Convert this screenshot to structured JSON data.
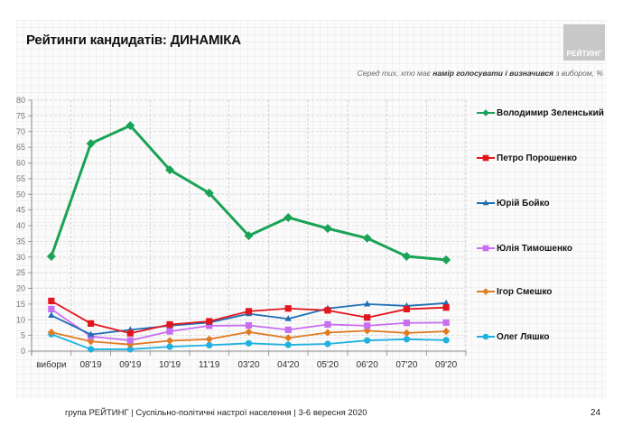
{
  "header": {
    "title": "Рейтинги кандидатів: ДИНАМІКА",
    "logo_text": "РЕЙТИНГ",
    "subtitle_pre": "Серед тих, хто має ",
    "subtitle_bold": "намір голосувати і визначився",
    "subtitle_post": " з вибором, %"
  },
  "chart_data": {
    "type": "line",
    "title": "Рейтинги кандидатів: ДИНАМІКА",
    "xlabel": "",
    "ylabel": "",
    "ylim": [
      0,
      80
    ],
    "yticks": [
      0,
      5,
      10,
      15,
      20,
      25,
      30,
      35,
      40,
      45,
      50,
      55,
      60,
      65,
      70,
      75,
      80
    ],
    "grid": true,
    "legend_position": "right",
    "categories": [
      "вибори",
      "08'19",
      "09'19",
      "10'19",
      "11'19",
      "03'20",
      "04'20",
      "05'20",
      "06'20",
      "07'20",
      "09'20"
    ],
    "series": [
      {
        "name": "Володимир Зеленський",
        "color": "#1aa356",
        "marker": "diamond",
        "values": [
          30.2,
          66.2,
          71.9,
          57.8,
          50.4,
          36.8,
          42.6,
          39.1,
          36.0,
          30.2,
          29.1
        ]
      },
      {
        "name": "Петро Порошенко",
        "color": "#e3161d",
        "marker": "square",
        "values": [
          16.0,
          8.8,
          5.7,
          8.5,
          9.5,
          12.7,
          13.6,
          13.0,
          10.7,
          13.4,
          13.9
        ]
      },
      {
        "name": "Юрій Бойко",
        "color": "#1f6fb5",
        "marker": "triangle",
        "values": [
          11.4,
          5.3,
          6.8,
          8.1,
          9.1,
          11.9,
          10.3,
          13.6,
          15.0,
          14.4,
          15.3
        ]
      },
      {
        "name": "Юлія Тимошенко",
        "color": "#c86ef0",
        "marker": "square",
        "values": [
          13.4,
          4.7,
          3.4,
          6.3,
          8.1,
          8.2,
          6.8,
          8.5,
          8.1,
          9.0,
          9.1
        ]
      },
      {
        "name": "Ігор Смешко",
        "color": "#e07b22",
        "marker": "diamond",
        "values": [
          6.0,
          3.1,
          2.1,
          3.3,
          3.8,
          6.1,
          4.2,
          5.9,
          6.5,
          5.8,
          6.3
        ]
      },
      {
        "name": "Олег Ляшко",
        "color": "#1fb2e0",
        "marker": "circle",
        "values": [
          5.4,
          0.6,
          0.6,
          1.4,
          1.9,
          2.5,
          2.0,
          2.3,
          3.4,
          3.8,
          3.5
        ]
      }
    ]
  },
  "footer": {
    "text": "група РЕЙТИНГ |  Суспільно-політичні настрої населення  | 3-6 вересня  2020",
    "page_number": "24"
  }
}
